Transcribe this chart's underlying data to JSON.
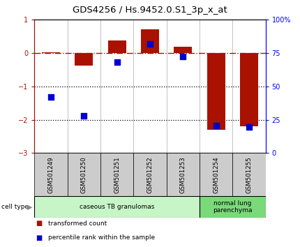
{
  "title": "GDS4256 / Hs.9452.0.S1_3p_x_at",
  "samples": [
    "GSM501249",
    "GSM501250",
    "GSM501251",
    "GSM501252",
    "GSM501253",
    "GSM501254",
    "GSM501255"
  ],
  "red_values": [
    0.02,
    -0.38,
    0.38,
    0.72,
    0.2,
    -2.3,
    -2.2
  ],
  "blue_values": [
    -1.32,
    -1.88,
    -0.28,
    0.28,
    -0.1,
    -2.18,
    -2.22
  ],
  "ylim_left": [
    -3.0,
    1.0
  ],
  "right_ticks": [
    0,
    25,
    50,
    75,
    100
  ],
  "right_tick_labels": [
    "0",
    "25",
    "50",
    "75",
    "100%"
  ],
  "left_ticks": [
    -3,
    -2,
    -1,
    0,
    1
  ],
  "dotted_lines": [
    -1,
    -2
  ],
  "cell_types": [
    {
      "label": "caseous TB granulomas",
      "samples": [
        0,
        1,
        2,
        3,
        4
      ],
      "color": "#c8f5c8"
    },
    {
      "label": "normal lung\nparenchyma",
      "samples": [
        5,
        6
      ],
      "color": "#7ada7a"
    }
  ],
  "red_color": "#aa1100",
  "blue_color": "#0000cc",
  "bar_width": 0.55,
  "legend_items": [
    {
      "color": "#aa1100",
      "label": "transformed count"
    },
    {
      "color": "#0000cc",
      "label": "percentile rank within the sample"
    }
  ],
  "bg_color": "#ffffff",
  "plot_bg": "#ffffff",
  "tick_label_fontsize": 7,
  "title_fontsize": 9.5
}
